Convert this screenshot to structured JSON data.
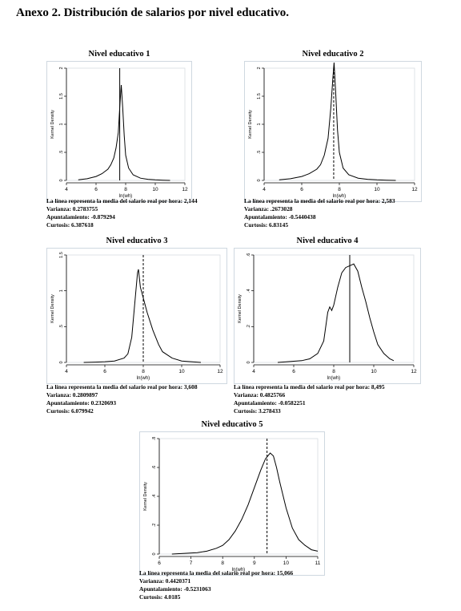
{
  "page_title": "Anexo 2. Distribución de salarios por nivel educativo.",
  "chart_data": [
    {
      "type": "line",
      "title": "Nivel educativo 1",
      "xlabel": "ln(wh)",
      "ylabel": "Kernel Density",
      "xlim": [
        4,
        12
      ],
      "ylim": [
        0,
        2
      ],
      "xticks": [
        "4",
        "6",
        "8",
        "10",
        "12"
      ],
      "yticks": [
        "0",
        ".5",
        "1",
        "1.5",
        "2"
      ],
      "mean_line": {
        "x": 7.6,
        "style": "solid"
      },
      "series": [
        {
          "x": [
            4.8,
            5.4,
            6.0,
            6.4,
            6.8,
            7.0,
            7.2,
            7.35,
            7.5,
            7.6,
            7.7,
            7.8,
            7.9,
            8.0,
            8.2,
            8.5,
            9.0,
            9.5,
            10.0,
            10.5,
            11.0
          ],
          "y": [
            0.01,
            0.03,
            0.07,
            0.12,
            0.2,
            0.28,
            0.4,
            0.58,
            0.85,
            1.3,
            1.7,
            1.3,
            0.8,
            0.45,
            0.22,
            0.1,
            0.04,
            0.02,
            0.01,
            0.005,
            0.0
          ]
        }
      ],
      "stats": [
        "La línea representa la media del salario real por hora: 2,144",
        "Varianza: 0.2783755",
        "Apuntalamiento: -0.879294",
        "Curtosis: 6.387618"
      ]
    },
    {
      "type": "line",
      "title": "Nivel educativo 2",
      "xlabel": "ln(wh)",
      "ylabel": "Kernel Density",
      "xlim": [
        4,
        12
      ],
      "ylim": [
        0,
        2
      ],
      "xticks": [
        "4",
        "6",
        "8",
        "10",
        "12"
      ],
      "yticks": [
        "0",
        ".5",
        "1",
        "1.5",
        "2"
      ],
      "mean_line": {
        "x": 7.7,
        "style": "dashed"
      },
      "series": [
        {
          "x": [
            4.8,
            5.4,
            6.0,
            6.4,
            6.8,
            7.0,
            7.2,
            7.4,
            7.55,
            7.65,
            7.72,
            7.8,
            7.9,
            8.0,
            8.2,
            8.5,
            9.0,
            9.5,
            10.0,
            10.5,
            11.0
          ],
          "y": [
            0.01,
            0.03,
            0.07,
            0.12,
            0.2,
            0.28,
            0.45,
            0.75,
            1.3,
            1.8,
            2.1,
            1.6,
            0.9,
            0.5,
            0.22,
            0.1,
            0.04,
            0.02,
            0.01,
            0.005,
            0.0
          ]
        }
      ],
      "stats": [
        "La línea representa la media del salario real por hora: 2,583",
        "Varianza: .2673028",
        "Apuntalamiento: -0.5440438",
        "Curtosis: 6.83145"
      ]
    },
    {
      "type": "line",
      "title": "Nivel educativo 3",
      "xlabel": "ln(wh)",
      "ylabel": "Kernel Density",
      "xlim": [
        4,
        12
      ],
      "ylim": [
        0,
        1.5
      ],
      "xticks": [
        "4",
        "6",
        "8",
        "10",
        "12"
      ],
      "yticks": [
        "0",
        ".5",
        "1",
        "1.5"
      ],
      "mean_line": {
        "x": 8.0,
        "style": "dashed"
      },
      "series": [
        {
          "x": [
            4.9,
            5.5,
            6.0,
            6.5,
            7.0,
            7.2,
            7.4,
            7.55,
            7.7,
            7.75,
            7.85,
            8.0,
            8.2,
            8.5,
            8.8,
            9.0,
            9.5,
            10.0,
            10.5,
            11.0
          ],
          "y": [
            0.0,
            0.005,
            0.01,
            0.02,
            0.06,
            0.12,
            0.35,
            0.8,
            1.25,
            1.3,
            1.05,
            0.9,
            0.7,
            0.45,
            0.25,
            0.15,
            0.06,
            0.02,
            0.01,
            0.0
          ]
        }
      ],
      "stats": [
        "La línea representa la media del salario real por hora: 3,608",
        "Varianza: 0.2809897",
        "Apuntalamiento: 0.2320693",
        "Curtosis: 6.079942"
      ]
    },
    {
      "type": "line",
      "title": "Nivel educativo 4",
      "xlabel": "ln(wh)",
      "ylabel": "Kernel Density",
      "xlim": [
        4,
        12
      ],
      "ylim": [
        0,
        0.6
      ],
      "xticks": [
        "4",
        "6",
        "8",
        "10",
        "12"
      ],
      "yticks": [
        "0",
        ".2",
        ".4",
        ".6"
      ],
      "mean_line": {
        "x": 8.8,
        "style": "solid"
      },
      "series": [
        {
          "x": [
            5.2,
            5.8,
            6.4,
            6.8,
            7.2,
            7.5,
            7.7,
            7.8,
            7.9,
            8.0,
            8.2,
            8.4,
            8.6,
            8.8,
            9.0,
            9.2,
            9.4,
            9.6,
            9.8,
            10.0,
            10.2,
            10.5,
            10.8,
            11.0
          ],
          "y": [
            0.0,
            0.005,
            0.01,
            0.02,
            0.05,
            0.12,
            0.28,
            0.31,
            0.29,
            0.32,
            0.42,
            0.5,
            0.53,
            0.54,
            0.55,
            0.51,
            0.42,
            0.34,
            0.25,
            0.17,
            0.1,
            0.05,
            0.02,
            0.01
          ]
        }
      ],
      "stats": [
        "La línea representa la media del salario real por hora: 8,495",
        "Varianza: 0.4825766",
        "Apuntalamiento: -0.0582251",
        "Curtosis: 3.278433"
      ]
    },
    {
      "type": "line",
      "title": "Nivel educativo 5",
      "xlabel": "ln(wh)",
      "ylabel": "Kernel Density",
      "xlim": [
        6,
        11
      ],
      "ylim": [
        0,
        0.8
      ],
      "xticks": [
        "6",
        "7",
        "8",
        "9",
        "10",
        "11"
      ],
      "yticks": [
        "0",
        ".2",
        ".4",
        ".6",
        ".8"
      ],
      "mean_line": {
        "x": 9.4,
        "style": "dashed"
      },
      "series": [
        {
          "x": [
            6.4,
            6.8,
            7.2,
            7.5,
            7.8,
            8.0,
            8.2,
            8.4,
            8.6,
            8.8,
            9.0,
            9.2,
            9.35,
            9.5,
            9.6,
            9.7,
            9.8,
            10.0,
            10.2,
            10.4,
            10.6,
            10.8,
            11.0
          ],
          "y": [
            0.0,
            0.005,
            0.01,
            0.02,
            0.04,
            0.06,
            0.1,
            0.16,
            0.24,
            0.34,
            0.46,
            0.58,
            0.66,
            0.7,
            0.68,
            0.6,
            0.5,
            0.32,
            0.18,
            0.1,
            0.06,
            0.03,
            0.02
          ]
        }
      ],
      "stats": [
        "La línea representa la media del salario real por hora: 15,066",
        "Varianza: 0.4420371",
        "Apuntalamiento: -0.5231063",
        "Curtosis: 4.0185"
      ]
    }
  ]
}
